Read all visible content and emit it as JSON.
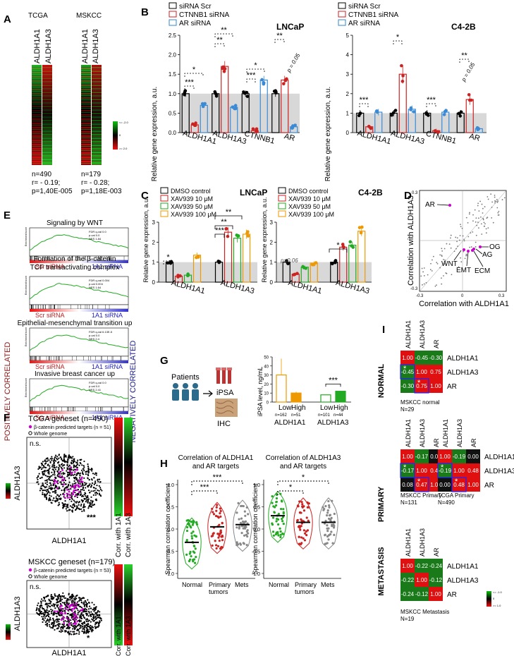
{
  "panel_labels": {
    "A": "A",
    "B": "B",
    "C": "C",
    "D": "D",
    "E": "E",
    "F": "F",
    "G": "G",
    "H": "H",
    "I": "I"
  },
  "panelA": {
    "tcga_title": "TCGA",
    "mskcc_title": "MSKCC",
    "col1": "ALDH1A1",
    "col2": "ALDH1A3",
    "scale_top": "<= -2.0",
    "scale_mid": "0",
    "scale_bot": ">= 2.0",
    "tcga_n": "n=490",
    "tcga_r": "r= - 0.19;",
    "tcga_p": "p=1,40E-005",
    "mskcc_n": "n=179",
    "mskcc_r": "r= - 0.28;",
    "mskcc_p": "p=1,18E-003"
  },
  "panelB": {
    "legend": [
      "siRNA Scr",
      "CTNNB1 siRNA",
      "AR siRNA"
    ],
    "ylabel": "Relative gene expression, a.u.",
    "lncap_title": "LNCaP",
    "c42b_title": "C4-2B",
    "pval_label": "p = 0.05",
    "lncap_sig": [
      "***",
      "*",
      "**",
      "**",
      "***",
      "*",
      "**"
    ],
    "c42b_sig": [
      "***",
      "*",
      "***",
      "**"
    ]
  },
  "panelC": {
    "legend": [
      "DMSO control",
      "XAV939 10 μM",
      "XAV939 50 μM",
      "XAV939 100 μM"
    ],
    "ylabel": "Relative gene expression, a.u.",
    "lncap_title": "LNCaP",
    "c42b_title": "C4-2B",
    "pval_label": "p=0.06",
    "lncap_sig": [
      "*",
      "***",
      "**",
      "**"
    ],
    "c42b_sig": [
      "*"
    ]
  },
  "panelD": {
    "xlabel": "Correlation with ALDH1A1",
    "ylabel": "Correlation with ALDH1A3",
    "labels": [
      "AR",
      "OG",
      "AG",
      "WNT",
      "EMT",
      "ECM"
    ],
    "ticks": [
      "-0.3",
      "0",
      "0.3",
      "-0.3",
      "0.3"
    ]
  },
  "panelE": {
    "positive": "POSITIVELY CORRELATED",
    "negative": "NEGATIVELY CORRELATED",
    "ylab": "Enrichment score",
    "left_label": "Scr siRNA",
    "right_label": "1A1 siRNA",
    "plots": [
      {
        "title": "Signaling by WNT",
        "stats": [
          "FDR q-val 0.0",
          "p-val 0.0",
          "NES 1.84"
        ]
      },
      {
        "title": "Formation of the β-catenin TCF transactivating complex",
        "stats": [
          "FDR q-val 0.004",
          "p-val 0.004",
          "NES 1.64"
        ]
      },
      {
        "title": "Epithelial-mesenchymal transition up",
        "stats": [
          "FDR q-val 6.13E-5",
          "p-val 0.0",
          "NES 2.4"
        ]
      },
      {
        "title": "Invasive breast cancer up",
        "stats": [
          "FDR q-val 0.0",
          "p-val 0.0",
          "NES 2.41"
        ]
      }
    ]
  },
  "panelF": {
    "tcga_title": "TCGA geneset (n=490)",
    "mskcc_title": "MSKCC geneset (n=179)",
    "legend_targets_tcga": "β-catenin predicted targets (n = 51)",
    "legend_targets_mskcc": "β-catenin predicted targets (n = 53)",
    "legend_genome": "Whole genome",
    "xlabel": "ALDH1A1",
    "ylabel": "ALDH1A3",
    "ns": "n.s.",
    "sig_tcga": "***",
    "sig_mskcc": "*",
    "corr1": "Corr. with 1A1",
    "corr2": "Corr. with 1A3",
    "scale_top": "<= -1.0",
    "scale_mid": "0",
    "scale_bot": ">= 1.0"
  },
  "panelG": {
    "patients": "Patients",
    "ipsa": "iPSA",
    "ihc": "IHC",
    "ylabel": "iPSA level, ng/mL",
    "groups": [
      "Low",
      "High",
      "Low",
      "High"
    ],
    "ns": [
      "n=162",
      "n=51",
      "n=101",
      "n=44"
    ],
    "genes": [
      "ALDH1A1",
      "ALDH1A3"
    ],
    "sig": "***",
    "yticks": [
      "0",
      "10",
      "20",
      "30",
      "40",
      "50"
    ]
  },
  "panelH": {
    "title1": "Correlation of ALDH1A1 and AR targets",
    "title2": "Correlation of ALDH1A3 and AR targets",
    "ylabel": "Spearman correlation coefficient",
    "cats": [
      "Normal",
      "Primary tumors",
      "Mets"
    ],
    "sig1": [
      "***",
      "***"
    ],
    "sig2": [
      "*",
      "*"
    ]
  },
  "panelI": {
    "normal": "NORMAL",
    "primary": "PRIMARY",
    "metastasis": "METASTASIS",
    "genes": [
      "ALDH1A1",
      "ALDH1A3",
      "AR"
    ],
    "normal_matrix": [
      "1.00",
      "-0.45",
      "-0.30",
      "-0.45",
      "1.00",
      "0.75",
      "-0.30",
      "0.75",
      "1.00"
    ],
    "normal_caption": "MSKCC normal",
    "normal_n": "N=29",
    "primary_mskcc": [
      "1.00",
      "-0.17",
      "0.08",
      "-0.17",
      "1.00",
      "0.47",
      "0.08",
      "0.47",
      "1.00"
    ],
    "primary_tcga": [
      "1.00",
      "-0.19",
      "0.00",
      "-0.19",
      "1.00",
      "0.48",
      "0.00",
      "0.48",
      "1.00"
    ],
    "primary_caption1": "MSKCC Primary",
    "primary_n1": "N=131",
    "primary_caption2": "TCGA Primary",
    "primary_n2": "N=490",
    "met_matrix": [
      "1.00",
      "-0.22",
      "-0.24",
      "-0.22",
      "1.00",
      "-0.12",
      "-0.24",
      "-0.12",
      "1.00"
    ],
    "met_caption": "MSKCC Metastasis",
    "met_n": "N=19",
    "scale_top": "<= -1.0",
    "scale_mid": "0",
    "scale_bot": ">= 1.0"
  },
  "chart_data": [
    {
      "type": "bar",
      "title": "LNCaP",
      "ylabel": "Relative gene expression, a.u.",
      "categories": [
        "ALDH1A1",
        "ALDH1A3",
        "CTNNB1",
        "AR"
      ],
      "ylim": [
        0,
        2.5
      ],
      "series": [
        {
          "name": "siRNA Scr",
          "values": [
            1.0,
            1.0,
            1.0,
            1.0
          ]
        },
        {
          "name": "CTNNB1 siRNA",
          "values": [
            0.2,
            1.7,
            0.05,
            1.35
          ]
        },
        {
          "name": "AR siRNA",
          "values": [
            0.7,
            0.65,
            1.35,
            0.15
          ]
        }
      ]
    },
    {
      "type": "bar",
      "title": "C4-2B",
      "ylabel": "Relative gene expression, a.u.",
      "categories": [
        "ALDH1A1",
        "ALDH1A3",
        "CTNNB1",
        "AR"
      ],
      "ylim": [
        0,
        5
      ],
      "series": [
        {
          "name": "siRNA Scr",
          "values": [
            1.0,
            1.0,
            1.0,
            1.0
          ]
        },
        {
          "name": "CTNNB1 siRNA",
          "values": [
            0.3,
            3.0,
            0.1,
            1.7
          ]
        },
        {
          "name": "AR siRNA",
          "values": [
            1.05,
            1.2,
            1.05,
            0.2
          ]
        }
      ]
    },
    {
      "type": "bar",
      "title": "LNCaP",
      "ylabel": "Relative gene expression, a.u.",
      "categories": [
        "ALDH1A1",
        "ALDH1A3"
      ],
      "ylim": [
        0,
        3
      ],
      "series": [
        {
          "name": "DMSO control",
          "values": [
            1.0,
            1.0
          ]
        },
        {
          "name": "XAV939 10 μM",
          "values": [
            0.3,
            2.5
          ]
        },
        {
          "name": "XAV939 50 μM",
          "values": [
            0.35,
            2.2
          ]
        },
        {
          "name": "XAV939 100 μM",
          "values": [
            1.35,
            2.4
          ]
        }
      ]
    },
    {
      "type": "bar",
      "title": "C4-2B",
      "ylabel": "Relative gene expression, a.u.",
      "categories": [
        "ALDH1A1",
        "ALDH1A3"
      ],
      "ylim": [
        0,
        3
      ],
      "series": [
        {
          "name": "DMSO control",
          "values": [
            1.0,
            1.0
          ]
        },
        {
          "name": "XAV939 10 μM",
          "values": [
            0.4,
            1.75
          ]
        },
        {
          "name": "XAV939 50 μM",
          "values": [
            0.75,
            1.85
          ]
        },
        {
          "name": "XAV939 100 μM",
          "values": [
            0.95,
            2.55
          ]
        }
      ]
    },
    {
      "type": "bar",
      "title": "iPSA",
      "ylabel": "iPSA level, ng/mL",
      "categories": [
        "Low ALDH1A1",
        "High ALDH1A1",
        "Low ALDH1A3",
        "High ALDH1A3"
      ],
      "ylim": [
        0,
        50
      ],
      "values": [
        30,
        10,
        8,
        12
      ]
    }
  ]
}
